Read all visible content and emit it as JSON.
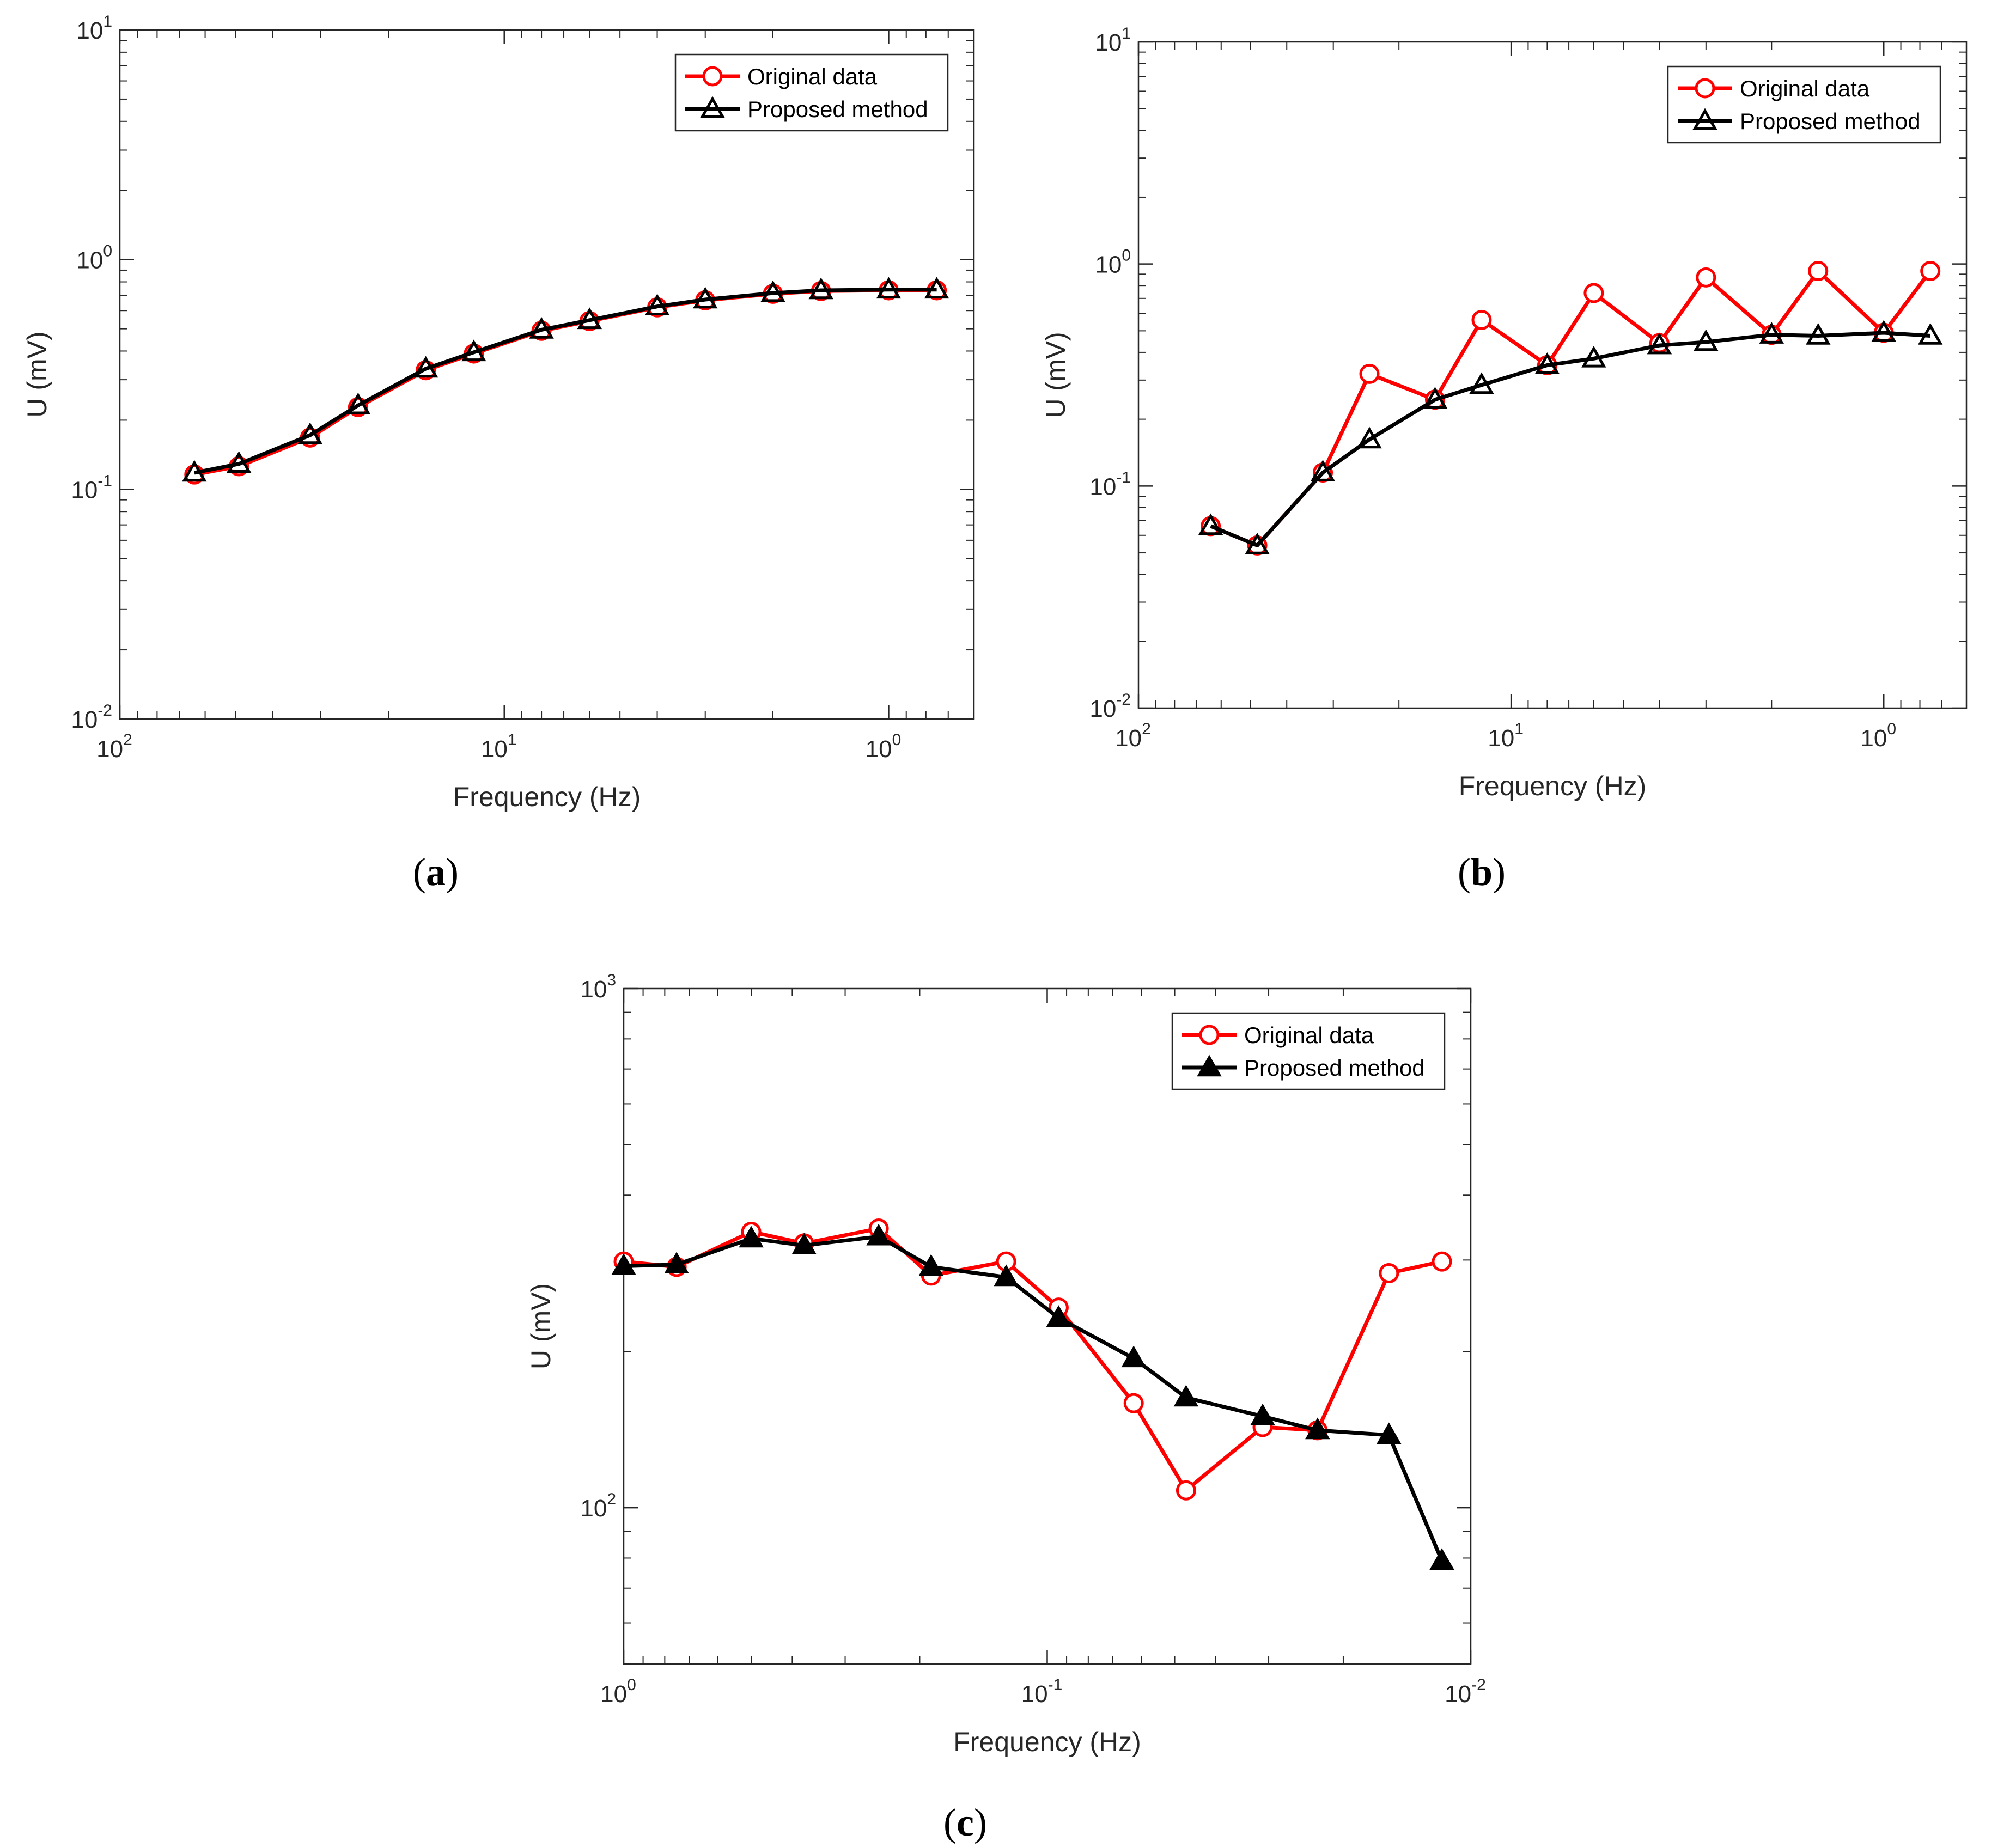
{
  "chart_data": [
    {
      "type": "line",
      "panel_label": {
        "open": "(",
        "letter": "a",
        "close": ")"
      },
      "xlabel": "Frequency (Hz)",
      "ylabel": "U (mV)",
      "xscale": "log",
      "yscale": "log",
      "x_reversed": true,
      "xlim": [
        100,
        0.6
      ],
      "ylim": [
        0.01,
        10
      ],
      "xticks": [
        {
          "base": "10",
          "exp": "2",
          "value": 100
        },
        {
          "base": "10",
          "exp": "1",
          "value": 10
        },
        {
          "base": "10",
          "exp": "0",
          "value": 1
        }
      ],
      "yticks": [
        {
          "base": "10",
          "exp": "-2",
          "value": 0.01
        },
        {
          "base": "10",
          "exp": "-1",
          "value": 0.1
        },
        {
          "base": "10",
          "exp": "0",
          "value": 1
        },
        {
          "base": "10",
          "exp": "1",
          "value": 10
        }
      ],
      "legend_position": "top-right",
      "x": [
        64,
        49,
        32,
        24,
        16,
        12,
        8,
        6,
        4,
        3,
        2,
        1.5,
        1,
        0.75
      ],
      "series": [
        {
          "name": "Original data",
          "color": "#ff0000",
          "marker": "circle",
          "values": [
            0.116,
            0.126,
            0.168,
            0.228,
            0.33,
            0.39,
            0.49,
            0.54,
            0.62,
            0.665,
            0.71,
            0.73,
            0.735,
            0.735
          ]
        },
        {
          "name": "Proposed method",
          "color": "#000000",
          "marker": "triangle-open",
          "values": [
            0.118,
            0.129,
            0.172,
            0.232,
            0.335,
            0.395,
            0.495,
            0.545,
            0.625,
            0.67,
            0.715,
            0.735,
            0.74,
            0.74
          ]
        }
      ]
    },
    {
      "type": "line",
      "panel_label": {
        "open": "(",
        "letter": "b",
        "close": ")"
      },
      "xlabel": "Frequency (Hz)",
      "ylabel": "U (mV)",
      "xscale": "log",
      "yscale": "log",
      "x_reversed": true,
      "xlim": [
        100,
        0.6
      ],
      "ylim": [
        0.01,
        10
      ],
      "xticks": [
        {
          "base": "10",
          "exp": "2",
          "value": 100
        },
        {
          "base": "10",
          "exp": "1",
          "value": 10
        },
        {
          "base": "10",
          "exp": "0",
          "value": 1
        }
      ],
      "yticks": [
        {
          "base": "10",
          "exp": "-2",
          "value": 0.01
        },
        {
          "base": "10",
          "exp": "-1",
          "value": 0.1
        },
        {
          "base": "10",
          "exp": "0",
          "value": 1
        },
        {
          "base": "10",
          "exp": "1",
          "value": 10
        }
      ],
      "legend_position": "top-right",
      "x": [
        64,
        48,
        32,
        24,
        16,
        12,
        8,
        6,
        4,
        3,
        2,
        1.5,
        1,
        0.75
      ],
      "series": [
        {
          "name": "Original data",
          "color": "#ff0000",
          "marker": "circle",
          "values": [
            0.066,
            0.054,
            0.115,
            0.32,
            0.245,
            0.56,
            0.35,
            0.74,
            0.44,
            0.87,
            0.48,
            0.93,
            0.49,
            0.93
          ]
        },
        {
          "name": "Proposed method",
          "color": "#000000",
          "marker": "triangle-open",
          "values": [
            0.066,
            0.054,
            0.115,
            0.162,
            0.245,
            0.285,
            0.35,
            0.375,
            0.43,
            0.445,
            0.48,
            0.475,
            0.49,
            0.475
          ]
        }
      ]
    },
    {
      "type": "line",
      "panel_label": {
        "open": "(",
        "letter": "c",
        "close": ")"
      },
      "xlabel": "Frequency (Hz)",
      "ylabel": "U (mV)",
      "xscale": "log",
      "yscale": "log",
      "x_reversed": true,
      "xlim": [
        1,
        0.01
      ],
      "ylim": [
        50,
        1000
      ],
      "xticks": [
        {
          "base": "10",
          "exp": "0",
          "value": 1
        },
        {
          "base": "10",
          "exp": "-1",
          "value": 0.1
        },
        {
          "base": "10",
          "exp": "-2",
          "value": 0.01
        }
      ],
      "yticks": [
        {
          "base": "10",
          "exp": "2",
          "value": 100
        },
        {
          "base": "10",
          "exp": "3",
          "value": 1000
        }
      ],
      "legend_position": "top-right",
      "x": [
        1,
        0.75,
        0.5,
        0.375,
        0.25,
        0.188,
        0.125,
        0.094,
        0.0625,
        0.047,
        0.031,
        0.023,
        0.0156,
        0.0117
      ],
      "series": [
        {
          "name": "Original data",
          "color": "#ff0000",
          "marker": "circle",
          "values": [
            298,
            291,
            340,
            323,
            345,
            280,
            298,
            243,
            159,
            108,
            143,
            141,
            283,
            298
          ]
        },
        {
          "name": "Proposed method",
          "color": "#000000",
          "marker": "triangle-filled",
          "values": [
            292,
            294,
            330,
            320,
            333,
            291,
            278,
            232,
            194,
            163,
            150,
            141,
            138,
            79
          ]
        }
      ]
    }
  ]
}
